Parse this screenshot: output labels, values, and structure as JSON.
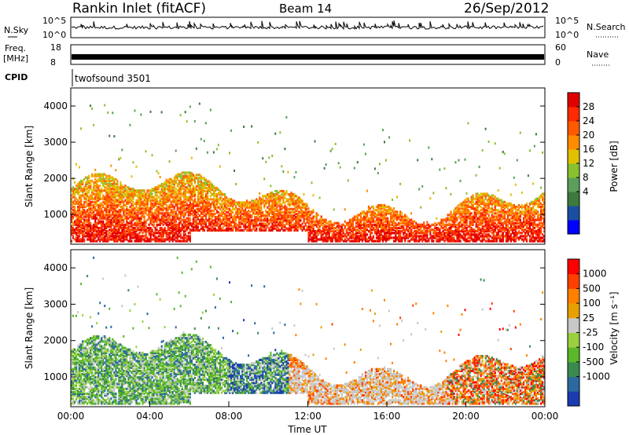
{
  "header": {
    "station": "Rankin Inlet (fitACF)",
    "beam": "Beam 14",
    "date": "26/Sep/2012"
  },
  "top_panels": {
    "nsky_label": "N.Sky",
    "nsky_ticks": [
      "10^5",
      "10^0"
    ],
    "nsearch_label": "N.Search",
    "nsearch_ticks": [
      "10^5",
      "10^0"
    ],
    "freq_label": "Freq.",
    "freq_unit": "[MHz]",
    "freq_ticks": [
      "18",
      "8"
    ],
    "nave_label": "Nave",
    "nave_ticks": [
      "60",
      "0"
    ],
    "cpid_label": "CPID",
    "cpid_value": "twofsound 3501"
  },
  "chart_data": [
    {
      "type": "heatmap",
      "name": "power",
      "ylabel": "Slant Range [km]",
      "yticks": [
        "4000",
        "3000",
        "2000",
        "1000"
      ],
      "ylim": [
        180,
        4500
      ],
      "xlim": [
        0,
        24
      ],
      "colorbar_label": "Power [dB]",
      "colorbar_ticks": [
        "28",
        "24",
        "20",
        "16",
        "12",
        "8",
        "4"
      ],
      "colorbar_colors": [
        "#0000ff",
        "#1a4fa0",
        "#3d7a3d",
        "#5aa05a",
        "#88c030",
        "#e0c000",
        "#ff8c00",
        "#ff5a00",
        "#ff2a00",
        "#e00000"
      ]
    },
    {
      "type": "heatmap",
      "name": "velocity",
      "ylabel": "Slant Range [km]",
      "yticks": [
        "4000",
        "3000",
        "2000",
        "1000"
      ],
      "ylim": [
        180,
        4500
      ],
      "xlim": [
        0,
        24
      ],
      "xticks": [
        "00:00",
        "04:00",
        "08:00",
        "12:00",
        "16:00",
        "20:00",
        "00:00"
      ],
      "xlabel": "Time UT",
      "colorbar_label": "Velocity [m s⁻¹]",
      "colorbar_ticks": [
        "1000",
        "500",
        "100",
        "25",
        "-25",
        "-100",
        "-500",
        "-1000"
      ],
      "colorbar_colors": [
        "#1b3cb0",
        "#2a6aa0",
        "#3a8a50",
        "#5ab82a",
        "#9ad040",
        "#c8c8c8",
        "#e8a000",
        "#ff8000",
        "#ff4000",
        "#ff0000"
      ]
    }
  ]
}
